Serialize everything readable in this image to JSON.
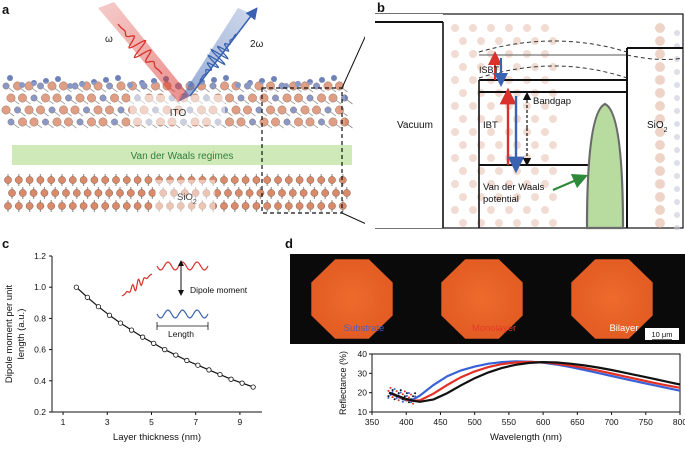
{
  "panel_a": {
    "letter": "a",
    "omega_label": "ω",
    "two_omega_label": "2ω",
    "ito_label": "ITO",
    "vdw_label": "Van der Waals regimes",
    "sio2_label": "SiO",
    "sio2_sub": "2",
    "colors": {
      "red": "#d9312b",
      "blue": "#3a62b0",
      "green": "#cfeab8",
      "atom_orange": "#d98a6a",
      "atom_blue": "#6f82b8"
    }
  },
  "panel_b": {
    "letter": "b",
    "vacuum_label": "Vacuum",
    "isbt_label": "ISBT",
    "ibt_label": "IBT",
    "bandgap_label": "Bandgap",
    "vdw_potential_line1": "Van der Waals",
    "vdw_potential_line2": "potential",
    "sio2_label": "SiO",
    "sio2_sub": "2"
  },
  "panel_c": {
    "letter": "c",
    "legend_dipole": "Dipole moment",
    "legend_length": "Length",
    "chart_data": {
      "type": "line",
      "xlabel": "Layer thickness (nm)",
      "ylabel_line1": "Dipole moment per unit",
      "ylabel_line2": "length (a.u.)",
      "xlim": [
        0.5,
        10
      ],
      "ylim": [
        0.2,
        1.2
      ],
      "xticks": [
        "1",
        "3",
        "5",
        "7",
        "9"
      ],
      "yticks": [
        "0.2",
        "0.4",
        "0.6",
        "0.8",
        "1.0",
        "1.2"
      ],
      "x": [
        1.6,
        2.1,
        2.6,
        3.1,
        3.6,
        4.1,
        4.6,
        5.1,
        5.6,
        6.1,
        6.6,
        7.1,
        7.6,
        8.1,
        8.6,
        9.1,
        9.6
      ],
      "y": [
        1.0,
        0.935,
        0.875,
        0.82,
        0.77,
        0.725,
        0.68,
        0.64,
        0.6,
        0.565,
        0.53,
        0.5,
        0.47,
        0.44,
        0.41,
        0.385,
        0.36
      ]
    }
  },
  "panel_d": {
    "letter": "d",
    "img_labels": [
      "Substrate",
      "Monolayer",
      "Bilayer"
    ],
    "img_label_colors": [
      "#4a5ec4",
      "#e63a2a",
      "#ffffff"
    ],
    "scale_bar": "10 μm",
    "chart_data": {
      "type": "line",
      "xlabel": "Wavelength (nm)",
      "ylabel": "Reflectance (%)",
      "xlim": [
        350,
        800
      ],
      "ylim": [
        10,
        40
      ],
      "xticks": [
        "350",
        "400",
        "450",
        "500",
        "550",
        "600",
        "650",
        "700",
        "750",
        "800"
      ],
      "yticks": [
        "10",
        "20",
        "30",
        "40"
      ],
      "series": [
        {
          "color": "#3a62d8",
          "x": [
            375,
            390,
            400,
            410,
            420,
            440,
            460,
            480,
            500,
            520,
            540,
            560,
            580,
            600,
            620,
            640,
            660,
            680,
            700,
            720,
            740,
            760,
            780,
            800
          ],
          "y": [
            20,
            17.5,
            16,
            16.5,
            18.5,
            24,
            28.5,
            31.5,
            33.5,
            35,
            35.8,
            36.2,
            36,
            35.5,
            34.5,
            33.2,
            31.8,
            30.2,
            28.6,
            27,
            25.5,
            24,
            22.5,
            21
          ]
        },
        {
          "color": "#e33025",
          "x": [
            375,
            390,
            400,
            410,
            420,
            440,
            460,
            480,
            500,
            520,
            540,
            560,
            580,
            600,
            620,
            640,
            660,
            680,
            700,
            720,
            740,
            760,
            780,
            800
          ],
          "y": [
            20,
            17.8,
            16.5,
            15.8,
            16,
            19.5,
            24,
            28,
            31,
            33.2,
            34.8,
            35.6,
            35.9,
            35.7,
            35,
            34,
            32.8,
            31.4,
            29.9,
            28.3,
            26.8,
            25.2,
            23.8,
            22.5
          ]
        },
        {
          "color": "#111111",
          "x": [
            375,
            390,
            400,
            410,
            420,
            440,
            460,
            480,
            500,
            520,
            540,
            560,
            580,
            600,
            620,
            640,
            660,
            680,
            700,
            720,
            740,
            760,
            780,
            800
          ],
          "y": [
            20,
            18,
            16.8,
            15.8,
            15.3,
            16.5,
            19.8,
            23.8,
            27.5,
            30.5,
            32.8,
            34.4,
            35.4,
            35.8,
            35.6,
            35,
            34.1,
            33,
            31.7,
            30.3,
            28.8,
            27.3,
            25.7,
            24.2
          ]
        }
      ]
    }
  }
}
